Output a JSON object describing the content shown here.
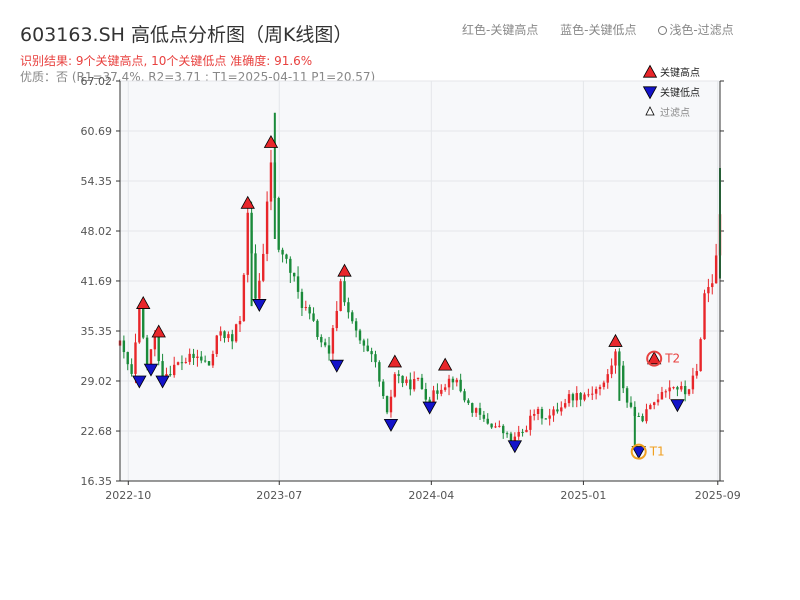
{
  "header": {
    "title": "603163.SH 高低点分析图（周K线图）",
    "legend_high": "红色-关键高点",
    "legend_low": "蓝色-关键低点",
    "legend_filtered": "浅色-过滤点",
    "result": "识别结果: 9个关键高点, 10个关键低点  准确度: 91.6%",
    "quality": "优质：否 (R1=37.4%, R2=3.71 ; T1=2025-04-11 P1=20.57)"
  },
  "colors": {
    "up": "#e8262a",
    "down": "#1a8a3a",
    "high_marker": "#e8262a",
    "low_marker": "#1313c9",
    "annotation": "#f0a020",
    "t2": "#e8413f"
  },
  "chart_data": {
    "type": "candlestick",
    "title": "603163.SH 高低点分析图（周K线图）",
    "ylim": [
      16.35,
      67.02
    ],
    "yticks": [
      "67.02",
      "60.69",
      "54.35",
      "48.02",
      "41.69",
      "35.35",
      "29.02",
      "22.68",
      "16.35"
    ],
    "xlim": [
      "2022-09-16",
      "2025-09-05"
    ],
    "xticks": [
      {
        "label": "2022-10",
        "date": "2022-10-01"
      },
      {
        "label": "2023-07",
        "date": "2023-07-01"
      },
      {
        "label": "2024-04",
        "date": "2024-04-01"
      },
      {
        "label": "2025-01",
        "date": "2025-01-01"
      },
      {
        "label": "2025-09",
        "date": "2025-09-01"
      }
    ],
    "grid": true,
    "legend_position": "top-right",
    "legend": [
      "关键高点",
      "关键低点",
      "过滤点"
    ],
    "path_points": [
      [
        "2022-09-16",
        33.5
      ],
      [
        "2022-09-30",
        31.0
      ],
      [
        "2022-10-07",
        29.5
      ],
      [
        "2022-10-21",
        37.5
      ],
      [
        "2022-11-04",
        31.0
      ],
      [
        "2022-11-18",
        34.5
      ],
      [
        "2022-12-02",
        29.8
      ],
      [
        "2023-01-06",
        31.5
      ],
      [
        "2023-02-03",
        32.0
      ],
      [
        "2023-02-24",
        31.0
      ],
      [
        "2023-03-17",
        35.5
      ],
      [
        "2023-04-07",
        34.0
      ],
      [
        "2023-04-21",
        37.0
      ],
      [
        "2023-05-05",
        49.5
      ],
      [
        "2023-05-19",
        39.5
      ],
      [
        "2023-06-02",
        45.0
      ],
      [
        "2023-06-16",
        57.0
      ],
      [
        "2023-06-30",
        46.0
      ],
      [
        "2023-07-21",
        43.0
      ],
      [
        "2023-08-04",
        40.0
      ],
      [
        "2023-08-25",
        37.0
      ],
      [
        "2023-09-15",
        34.0
      ],
      [
        "2023-09-29",
        32.0
      ],
      [
        "2023-10-20",
        41.5
      ],
      [
        "2023-11-10",
        36.0
      ],
      [
        "2023-12-01",
        33.0
      ],
      [
        "2023-12-22",
        31.0
      ],
      [
        "2024-01-12",
        24.5
      ],
      [
        "2024-01-26",
        30.0
      ],
      [
        "2024-02-16",
        28.5
      ],
      [
        "2024-03-08",
        29.0
      ],
      [
        "2024-03-29",
        26.5
      ],
      [
        "2024-04-19",
        28.5
      ],
      [
        "2024-05-10",
        29.5
      ],
      [
        "2024-06-07",
        26.0
      ],
      [
        "2024-07-05",
        24.0
      ],
      [
        "2024-08-02",
        23.0
      ],
      [
        "2024-08-23",
        21.5
      ],
      [
        "2024-09-13",
        22.5
      ],
      [
        "2024-10-04",
        25.0
      ],
      [
        "2024-11-01",
        24.5
      ],
      [
        "2024-12-06",
        27.0
      ],
      [
        "2025-01-10",
        27.5
      ],
      [
        "2025-02-07",
        28.5
      ],
      [
        "2025-02-28",
        32.5
      ],
      [
        "2025-03-21",
        26.5
      ],
      [
        "2025-04-11",
        24.0
      ],
      [
        "2025-05-02",
        25.5
      ],
      [
        "2025-05-23",
        28.0
      ],
      [
        "2025-06-13",
        28.5
      ],
      [
        "2025-07-04",
        27.5
      ],
      [
        "2025-07-25",
        30.0
      ],
      [
        "2025-08-08",
        40.0
      ],
      [
        "2025-08-22",
        42.0
      ],
      [
        "2025-09-05",
        49.0
      ]
    ],
    "spikes": [
      {
        "date": "2023-06-23",
        "high": 63.0,
        "low": 47.0
      },
      {
        "date": "2025-09-05",
        "high": 56.0,
        "low": 42.0
      },
      {
        "date": "2025-03-07",
        "high": 32.5,
        "low": 26.5
      },
      {
        "date": "2025-04-04",
        "high": 25.0,
        "low": 20.57
      },
      {
        "date": "2023-05-12",
        "high": 48.0,
        "low": 38.5
      }
    ],
    "key_highs": [
      {
        "date": "2022-10-28",
        "value": 38.6
      },
      {
        "date": "2022-11-25",
        "value": 35.0
      },
      {
        "date": "2023-05-05",
        "value": 51.3
      },
      {
        "date": "2023-06-16",
        "value": 59.0
      },
      {
        "date": "2023-10-27",
        "value": 42.7
      },
      {
        "date": "2024-01-26",
        "value": 31.2
      },
      {
        "date": "2024-04-26",
        "value": 30.8
      },
      {
        "date": "2025-02-28",
        "value": 33.8
      },
      {
        "date": "2025-05-09",
        "value": 31.6
      }
    ],
    "key_lows": [
      {
        "date": "2022-10-21",
        "value": 29.5
      },
      {
        "date": "2022-11-11",
        "value": 31.0
      },
      {
        "date": "2022-12-02",
        "value": 29.5
      },
      {
        "date": "2023-05-26",
        "value": 39.2
      },
      {
        "date": "2023-10-13",
        "value": 31.5
      },
      {
        "date": "2024-01-19",
        "value": 24.0
      },
      {
        "date": "2024-03-29",
        "value": 26.2
      },
      {
        "date": "2024-08-30",
        "value": 21.3
      },
      {
        "date": "2025-04-11",
        "value": 20.57
      },
      {
        "date": "2025-06-20",
        "value": 26.5
      }
    ],
    "annotations": [
      {
        "label": "T1",
        "date": "2025-04-11",
        "value": 20.57
      },
      {
        "label": "T2",
        "date": "2025-05-09",
        "value": 31.6
      }
    ]
  }
}
